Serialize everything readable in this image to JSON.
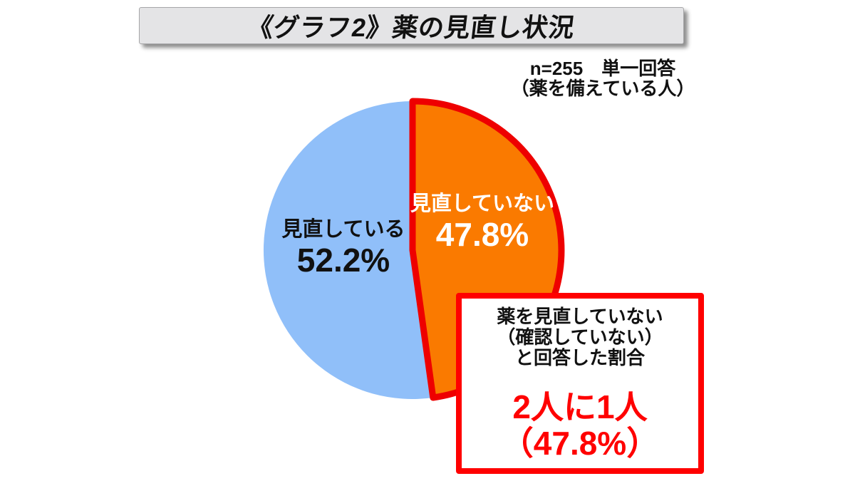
{
  "header": {
    "title": "《グラフ2》薬の見直し状況"
  },
  "sample_note": {
    "line1": "n=255　単一回答",
    "line2": "（薬を備えている人）"
  },
  "chart_data": {
    "type": "pie",
    "title": "《グラフ2》薬の見直し状況",
    "n": 255,
    "answer_type": "単一回答",
    "population_note": "薬を備えている人",
    "start_angle_deg": 0,
    "direction": "clockwise",
    "slices": [
      {
        "id": "not-reviewing",
        "label": "見直していない",
        "value": 47.8,
        "color": "#FA7A00",
        "stroke_color": "#EE0000",
        "stroke_width": 9,
        "label_color": "#FFFFFF"
      },
      {
        "id": "reviewing",
        "label": "見直している",
        "value": 52.2,
        "color": "#90BFF9",
        "label_color": "#111111"
      }
    ]
  },
  "pie_labels": {
    "not_reviewing": {
      "name": "見直していない",
      "pct": "47.8%"
    },
    "reviewing": {
      "name": "見直している",
      "pct": "52.2%"
    }
  },
  "callout": {
    "desc_line1": "薬を見直していない",
    "desc_line2": "（確認していない）",
    "desc_line3": "と回答した割合",
    "big_line1": "2人に1人",
    "big_line2": "（47.8%）"
  },
  "colors": {
    "accent_red": "#FF0000",
    "pie_stroke_red": "#EE0000",
    "slice_blue": "#90BFF9",
    "slice_orange": "#FA7A00",
    "title_bar_bg": "#E4E4E6",
    "text_black": "#111111",
    "text_white": "#FFFFFF"
  }
}
